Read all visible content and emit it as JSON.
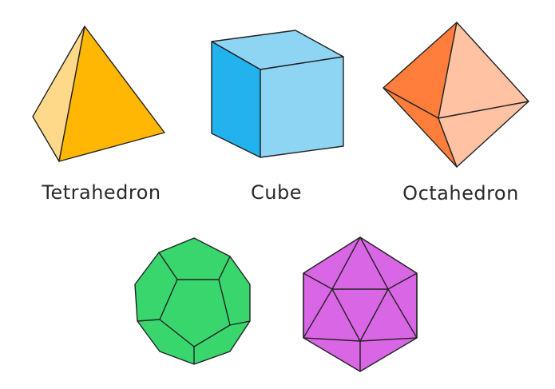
{
  "solids": [
    {
      "label": "Tetrahedron",
      "icon": "tetrahedron-icon",
      "colors": {
        "light_face": "#FFD98A",
        "main_face": "#FFB703"
      }
    },
    {
      "label": "Cube",
      "icon": "cube-icon",
      "colors": {
        "front_face": "#22B3EE",
        "side_face": "#8DD5F2",
        "top_face": "#8DD5F2"
      }
    },
    {
      "label": "Octahedron",
      "icon": "octahedron-icon",
      "colors": {
        "dark_face": "#FF7E3B",
        "light_face": "#FFC2A2"
      }
    },
    {
      "label": "",
      "icon": "dodecahedron-icon",
      "colors": {
        "face": "#38D66D"
      }
    },
    {
      "label": "",
      "icon": "icosahedron-icon",
      "colors": {
        "face": "#D966E4"
      }
    }
  ],
  "edge_color": "#222222"
}
